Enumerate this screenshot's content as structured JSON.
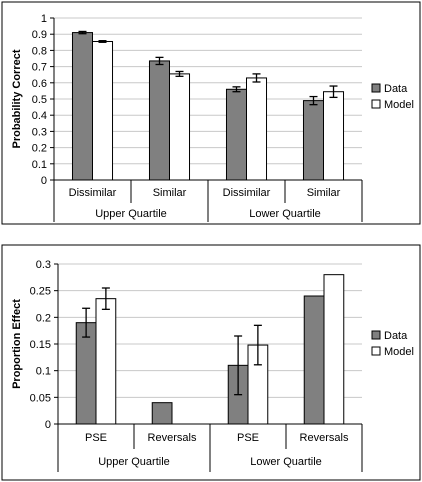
{
  "chart_data": [
    {
      "type": "bar",
      "ylabel": "Probability Correct",
      "ylim": [
        0,
        1
      ],
      "yticks": [
        0,
        0.1,
        0.2,
        0.3,
        0.4,
        0.5,
        0.6,
        0.7,
        0.8,
        0.9,
        1
      ],
      "ytick_labels": [
        "0",
        "0.1",
        "0.2",
        "0.3",
        "0.4",
        "0.5",
        "0.6",
        "0.7",
        "0.8",
        "0.9",
        "1"
      ],
      "grid": "horizontal",
      "legend_position": "right",
      "categories": [
        "Dissimilar",
        "Similar",
        "Dissimilar",
        "Similar"
      ],
      "groups": [
        "Upper Quartile",
        "Lower Quartile"
      ],
      "series": [
        {
          "name": "Data",
          "color": "#808080",
          "values": [
            0.91,
            0.735,
            0.56,
            0.49
          ],
          "errors": [
            0.007,
            0.022,
            0.015,
            0.025
          ]
        },
        {
          "name": "Model",
          "color": "#ffffff",
          "values": [
            0.855,
            0.655,
            0.63,
            0.545
          ],
          "errors": [
            0.005,
            0.015,
            0.025,
            0.035
          ]
        }
      ]
    },
    {
      "type": "bar",
      "ylabel": "Proportion Effect",
      "ylim": [
        0,
        0.3
      ],
      "yticks": [
        0,
        0.05,
        0.1,
        0.15,
        0.2,
        0.25,
        0.3
      ],
      "ytick_labels": [
        "0",
        "0.05",
        "0.1",
        "0.15",
        "0.2",
        "0.25",
        "0.3"
      ],
      "grid": "horizontal",
      "legend_position": "right",
      "categories": [
        "PSE",
        "Reversals",
        "PSE",
        "Reversals"
      ],
      "groups": [
        "Upper Quartile",
        "Lower Quartile"
      ],
      "series": [
        {
          "name": "Data",
          "color": "#808080",
          "values": [
            0.19,
            0.04,
            0.11,
            0.24
          ],
          "errors": [
            0.027,
            null,
            0.055,
            null
          ]
        },
        {
          "name": "Model",
          "color": "#ffffff",
          "values": [
            0.235,
            null,
            0.148,
            0.28
          ],
          "errors": [
            0.02,
            null,
            0.037,
            null
          ]
        }
      ]
    }
  ]
}
